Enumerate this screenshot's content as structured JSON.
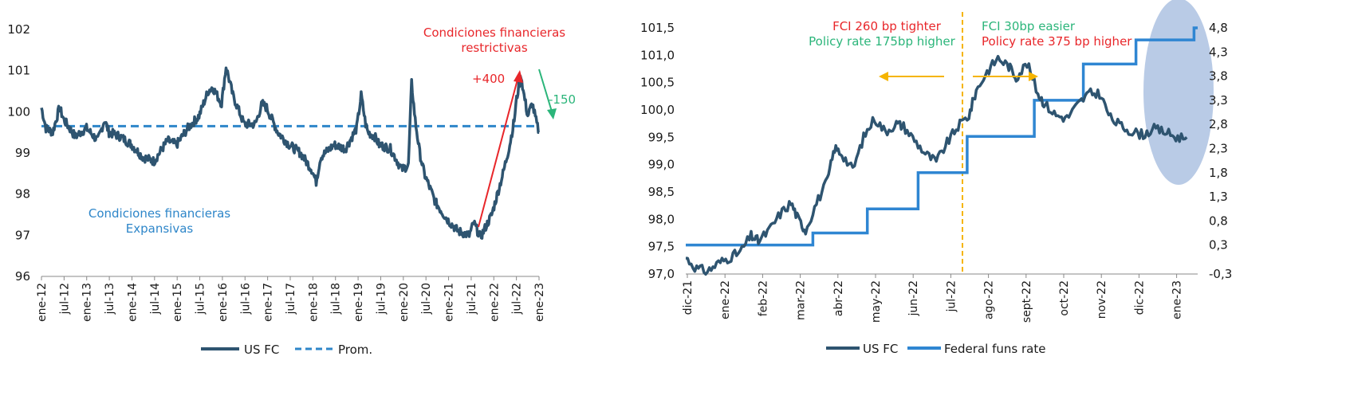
{
  "chart_data": [
    {
      "type": "line",
      "title": "",
      "xlabel": "",
      "ylabel": "",
      "ylim": [
        96,
        102
      ],
      "y_ticks": [
        "96",
        "97",
        "98",
        "99",
        "100",
        "101",
        "102"
      ],
      "x_ticks": [
        "ene-12",
        "jul-12",
        "ene-13",
        "jul-13",
        "ene-14",
        "jul-14",
        "ene-15",
        "jul-15",
        "ene-16",
        "jul-16",
        "ene-17",
        "jul-17",
        "ene-18",
        "jul-18",
        "ene-19",
        "jul-19",
        "ene-20",
        "jul-20",
        "ene-21",
        "jul-21",
        "ene-22",
        "jul-22",
        "ene-23"
      ],
      "grid": false,
      "legend_position": "bottom",
      "series": [
        {
          "name": "US FC",
          "color": "#2e5470",
          "style": "solid",
          "x": [
            2012.0,
            2012.1,
            2012.25,
            2012.4,
            2012.5,
            2012.75,
            2013.0,
            2013.25,
            2013.4,
            2013.5,
            2013.75,
            2014.0,
            2014.25,
            2014.5,
            2014.8,
            2015.0,
            2015.25,
            2015.5,
            2015.7,
            2015.8,
            2016.0,
            2016.1,
            2016.25,
            2016.5,
            2016.75,
            2016.9,
            2017.0,
            2017.25,
            2017.5,
            2017.75,
            2018.0,
            2018.1,
            2018.2,
            2018.3,
            2018.5,
            2018.75,
            2019.0,
            2019.1,
            2019.2,
            2019.25,
            2019.4,
            2019.5,
            2019.75,
            2020.0,
            2020.15,
            2020.22,
            2020.3,
            2020.4,
            2020.5,
            2020.75,
            2021.0,
            2021.25,
            2021.5,
            2021.6,
            2021.75,
            2022.0,
            2022.25,
            2022.4,
            2022.5,
            2022.55,
            2022.65,
            2022.7,
            2022.8,
            2022.9,
            2023.0,
            2023.05
          ],
          "y": [
            100.1,
            99.6,
            99.5,
            100.1,
            99.8,
            99.4,
            99.6,
            99.3,
            99.8,
            99.5,
            99.4,
            99.2,
            98.9,
            98.8,
            99.3,
            99.2,
            99.6,
            99.9,
            100.5,
            100.6,
            100.2,
            101.1,
            100.4,
            99.7,
            99.7,
            100.2,
            100.1,
            99.5,
            99.2,
            99.0,
            98.6,
            98.3,
            98.9,
            99.0,
            99.2,
            99.1,
            99.6,
            100.4,
            99.7,
            99.5,
            99.4,
            99.2,
            99.1,
            98.6,
            98.7,
            100.7,
            99.8,
            99.0,
            98.5,
            97.8,
            97.4,
            97.1,
            97.0,
            97.3,
            96.95,
            97.5,
            98.5,
            99.2,
            99.8,
            100.3,
            100.9,
            100.5,
            99.9,
            100.2,
            99.7,
            99.5
          ]
        },
        {
          "name": "Prom.",
          "color": "#2e86c9",
          "style": "dashed",
          "value": 99.65
        }
      ],
      "annotations": {
        "restrictive_label": "Condiciones financieras restrictivas",
        "up_label": "+400",
        "down_label": "-150",
        "expansive_label": "Condiciones financieras Expansivas",
        "red": "#e8262a",
        "green": "#2bb57a",
        "blue": "#2e86c9"
      }
    },
    {
      "type": "line",
      "title": "",
      "xlabel": "",
      "ylabel": "",
      "ylim": [
        97.0,
        101.5
      ],
      "y2lim": [
        -0.3,
        4.8
      ],
      "y_ticks": [
        "97,0",
        "97,5",
        "98,0",
        "98,5",
        "99,0",
        "99,5",
        "100,0",
        "100,5",
        "101,0",
        "101,5"
      ],
      "y2_ticks": [
        "-0,3",
        "0,3",
        "0,8",
        "1,3",
        "1,8",
        "2,3",
        "2,8",
        "3,3",
        "3,8",
        "4,3",
        "4,8"
      ],
      "x_ticks": [
        "dic-21",
        "ene-22",
        "feb-22",
        "mar-22",
        "abr-22",
        "may-22",
        "jun-22",
        "jul-22",
        "ago-22",
        "sept-22",
        "oct-22",
        "nov-22",
        "dic-22",
        "ene-23"
      ],
      "grid": false,
      "legend_position": "bottom",
      "series": [
        {
          "name": "US FC",
          "color": "#2e5470",
          "axis": "left",
          "x": [
            0.0,
            0.3,
            0.6,
            0.9,
            1.2,
            1.5,
            1.8,
            2.0,
            2.3,
            2.6,
            2.9,
            3.1,
            3.3,
            3.6,
            3.9,
            4.1,
            4.3,
            4.6,
            4.9,
            5.2,
            5.5,
            5.8,
            6.0,
            6.3,
            6.6,
            6.9,
            7.2,
            7.5,
            7.8,
            8.0,
            8.3,
            8.6,
            8.9,
            9.1,
            9.4,
            9.7,
            9.9,
            10.2,
            10.5,
            10.8,
            11.1,
            11.4,
            11.7,
            12.0,
            12.3,
            12.6,
            12.9,
            13.2,
            13.5,
            13.8
          ],
          "y": [
            97.3,
            97.1,
            97.05,
            97.2,
            97.3,
            97.4,
            97.7,
            97.6,
            97.8,
            98.1,
            98.3,
            98.0,
            97.8,
            98.3,
            98.7,
            99.3,
            99.2,
            98.9,
            99.5,
            99.85,
            99.6,
            99.75,
            99.7,
            99.45,
            99.2,
            99.05,
            99.4,
            99.7,
            99.9,
            100.35,
            100.7,
            100.95,
            100.8,
            100.6,
            100.85,
            100.3,
            100.1,
            99.9,
            99.85,
            100.1,
            100.3,
            100.3,
            99.85,
            99.7,
            99.6,
            99.55,
            99.65,
            99.6,
            99.5,
            99.5
          ],
          "y_note": "values read off chart"
        },
        {
          "name": "Federal funs rate",
          "color": "#2f86d2",
          "axis": "right",
          "steps": [
            {
              "x0": 0.0,
              "x1": 3.5,
              "y": 0.3
            },
            {
              "x0": 3.5,
              "x1": 5.0,
              "y": 0.55
            },
            {
              "x0": 5.0,
              "x1": 6.4,
              "y": 1.05
            },
            {
              "x0": 6.4,
              "x1": 7.75,
              "y": 1.8
            },
            {
              "x0": 7.75,
              "x1": 9.6,
              "y": 2.55
            },
            {
              "x0": 9.6,
              "x1": 10.95,
              "y": 3.3
            },
            {
              "x0": 10.95,
              "x1": 12.4,
              "y": 4.05
            },
            {
              "x0": 12.4,
              "x1": 14.0,
              "y": 4.55
            },
            {
              "x0": 14.0,
              "x1": 14.1,
              "y": 4.8
            }
          ]
        }
      ],
      "annotations": {
        "left_line1": "FCI 260 bp tighter",
        "left_line2": "Policy rate 175bp higher",
        "right_line1": "FCI 30bp easier",
        "right_line2": "Policy rate 375 bp higher",
        "red": "#e8262a",
        "green": "#2bb57a",
        "orange": "#f5b400",
        "highlight": "#b9cbe6"
      }
    }
  ]
}
